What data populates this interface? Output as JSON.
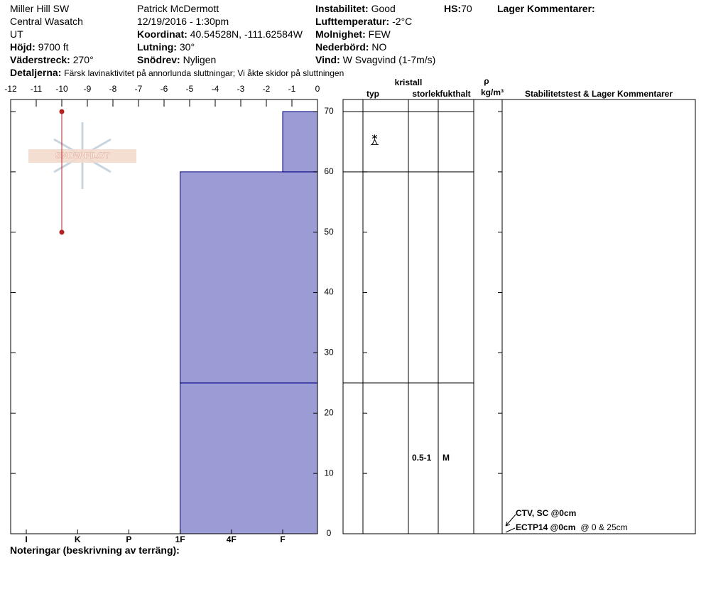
{
  "header": {
    "location": "Miller Hill SW",
    "range": "Central Wasatch",
    "state": "UT",
    "elevation": {
      "label": "Höjd:",
      "value": "9700 ft"
    },
    "aspect": {
      "label": "Väderstreck:",
      "value": "270°"
    },
    "observer": "Patrick McDermott",
    "datetime": "12/19/2016 - 1:30pm",
    "coordinates": {
      "label": "Koordinat:",
      "value": "40.54528N, -111.62584W"
    },
    "slope": {
      "label": "Lutning:",
      "value": "30°"
    },
    "wind_loading": {
      "label": "Snödrev:",
      "value": "Nyligen"
    },
    "stability": {
      "label": "Instabilitet:",
      "value": "Good"
    },
    "hs": {
      "label": "HS:",
      "value": "70"
    },
    "air_temp": {
      "label": "Lufttemperatur:",
      "value": "-2°C"
    },
    "sky": {
      "label": "Molnighet:",
      "value": "FEW"
    },
    "precip": {
      "label": "Nederbörd:",
      "value": "NO"
    },
    "wind": {
      "label": "Vind:",
      "value": "W Svagvind (1-7m/s)"
    },
    "layer_comments": "Lager Kommentarer:",
    "details": {
      "label": "Detaljerna:",
      "value": "Färsk lavinaktivitet på annorlunda sluttningar; Vi åkte skidor på sluttningen"
    }
  },
  "chart_data": {
    "type": "snowpit",
    "watermark": "SNOW PILOT",
    "xlim": [
      -12,
      0
    ],
    "xticks": [
      -12,
      -11,
      -10,
      -9,
      -8,
      -7,
      -6,
      -5,
      -4,
      -3,
      -2,
      -1,
      0
    ],
    "ylim": [
      0,
      72
    ],
    "yticks": [
      0,
      10,
      20,
      30,
      40,
      50,
      60,
      70
    ],
    "hardness_categories": [
      "I",
      "K",
      "P",
      "1F",
      "4F",
      "F"
    ],
    "layer_color": "#9b9bd6",
    "layers": [
      {
        "bottom": 0,
        "top": 25,
        "hardness": "1F",
        "size": "0.5-1",
        "moisture": "M"
      },
      {
        "bottom": 25,
        "top": 60,
        "hardness": "1F"
      },
      {
        "bottom": 60,
        "top": 70,
        "hardness": "F"
      }
    ],
    "temperature": {
      "color": "#b22222",
      "height": [
        70,
        50
      ],
      "temp": [
        -10,
        -10
      ]
    }
  },
  "table_headers": {
    "crystal": "kristall",
    "type": "typ",
    "size": "storlek",
    "moisture": "fukthalt",
    "rho": "ρ",
    "density_unit": "kg/m³",
    "comments": "Stabilitetstest & Lager Kommentarer"
  },
  "tests": [
    {
      "result": "CTV, SC @0cm"
    },
    {
      "result": "ECTP14 @0cm",
      "depths": "@ 0 & 25cm"
    }
  ],
  "notes_label": "Noteringar (beskrivning av terräng):"
}
